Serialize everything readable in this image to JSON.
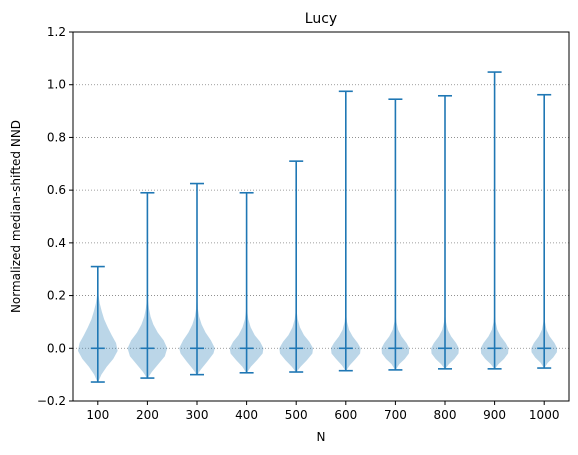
{
  "chart_data": {
    "type": "violin",
    "title": "Lucy",
    "xlabel": "N",
    "ylabel": "Normalized median-shifted NND",
    "categories": [
      "100",
      "200",
      "300",
      "400",
      "500",
      "600",
      "700",
      "800",
      "900",
      "1000"
    ],
    "ylim": [
      -0.2,
      1.2
    ],
    "yticks": [
      "−0.2",
      "0.0",
      "0.2",
      "0.4",
      "0.6",
      "0.8",
      "1.0",
      "1.2"
    ],
    "ytick_values": [
      -0.2,
      0.0,
      0.2,
      0.4,
      0.6,
      0.8,
      1.0,
      1.2
    ],
    "grid": "y-dotted",
    "colors": {
      "line": "#1f77b4",
      "fill": "#1f77b4",
      "grid": "#808080"
    },
    "series": [
      {
        "category": "100",
        "min": -0.128,
        "median": 0.0,
        "max": 0.31,
        "half_width": 0.4,
        "profile": [
          [
            -0.128,
            0.02
          ],
          [
            -0.1,
            0.18
          ],
          [
            -0.07,
            0.45
          ],
          [
            -0.04,
            0.78
          ],
          [
            -0.01,
            1.0
          ],
          [
            0.02,
            0.92
          ],
          [
            0.05,
            0.7
          ],
          [
            0.08,
            0.5
          ],
          [
            0.11,
            0.32
          ],
          [
            0.14,
            0.2
          ],
          [
            0.17,
            0.1
          ],
          [
            0.2,
            0.04
          ],
          [
            0.25,
            0.01
          ],
          [
            0.31,
            0.0
          ]
        ]
      },
      {
        "category": "200",
        "min": -0.113,
        "median": 0.0,
        "max": 0.59,
        "half_width": 0.4,
        "profile": [
          [
            -0.113,
            0.02
          ],
          [
            -0.09,
            0.22
          ],
          [
            -0.06,
            0.55
          ],
          [
            -0.03,
            0.88
          ],
          [
            0.0,
            1.0
          ],
          [
            0.03,
            0.82
          ],
          [
            0.06,
            0.52
          ],
          [
            0.09,
            0.3
          ],
          [
            0.12,
            0.16
          ],
          [
            0.15,
            0.08
          ],
          [
            0.18,
            0.03
          ],
          [
            0.25,
            0.01
          ],
          [
            0.59,
            0.0
          ]
        ]
      },
      {
        "category": "300",
        "min": -0.1,
        "median": 0.0,
        "max": 0.625,
        "half_width": 0.36,
        "profile": [
          [
            -0.1,
            0.02
          ],
          [
            -0.08,
            0.22
          ],
          [
            -0.05,
            0.58
          ],
          [
            -0.02,
            0.92
          ],
          [
            0.0,
            1.0
          ],
          [
            0.03,
            0.78
          ],
          [
            0.06,
            0.48
          ],
          [
            0.09,
            0.26
          ],
          [
            0.12,
            0.12
          ],
          [
            0.15,
            0.05
          ],
          [
            0.2,
            0.01
          ],
          [
            0.625,
            0.0
          ]
        ]
      },
      {
        "category": "400",
        "min": -0.093,
        "median": 0.0,
        "max": 0.59,
        "half_width": 0.34,
        "profile": [
          [
            -0.093,
            0.02
          ],
          [
            -0.07,
            0.25
          ],
          [
            -0.045,
            0.62
          ],
          [
            -0.02,
            0.95
          ],
          [
            0.0,
            1.0
          ],
          [
            0.025,
            0.8
          ],
          [
            0.05,
            0.48
          ],
          [
            0.08,
            0.24
          ],
          [
            0.11,
            0.1
          ],
          [
            0.14,
            0.04
          ],
          [
            0.19,
            0.01
          ],
          [
            0.59,
            0.0
          ]
        ]
      },
      {
        "category": "500",
        "min": -0.09,
        "median": 0.0,
        "max": 0.71,
        "half_width": 0.34,
        "profile": [
          [
            -0.09,
            0.02
          ],
          [
            -0.07,
            0.26
          ],
          [
            -0.045,
            0.64
          ],
          [
            -0.02,
            0.96
          ],
          [
            0.0,
            1.0
          ],
          [
            0.025,
            0.78
          ],
          [
            0.05,
            0.46
          ],
          [
            0.08,
            0.22
          ],
          [
            0.11,
            0.09
          ],
          [
            0.14,
            0.03
          ],
          [
            0.18,
            0.01
          ],
          [
            0.71,
            0.0
          ]
        ]
      },
      {
        "category": "600",
        "min": -0.085,
        "median": 0.0,
        "max": 0.975,
        "half_width": 0.3,
        "profile": [
          [
            -0.085,
            0.02
          ],
          [
            -0.065,
            0.26
          ],
          [
            -0.04,
            0.66
          ],
          [
            -0.02,
            0.96
          ],
          [
            0.0,
            1.0
          ],
          [
            0.02,
            0.8
          ],
          [
            0.045,
            0.46
          ],
          [
            0.07,
            0.22
          ],
          [
            0.1,
            0.08
          ],
          [
            0.13,
            0.03
          ],
          [
            0.17,
            0.01
          ],
          [
            0.975,
            0.0
          ]
        ]
      },
      {
        "category": "700",
        "min": -0.082,
        "median": 0.0,
        "max": 0.945,
        "half_width": 0.28,
        "profile": [
          [
            -0.082,
            0.02
          ],
          [
            -0.06,
            0.28
          ],
          [
            -0.04,
            0.68
          ],
          [
            -0.02,
            0.97
          ],
          [
            0.0,
            1.0
          ],
          [
            0.02,
            0.8
          ],
          [
            0.045,
            0.44
          ],
          [
            0.07,
            0.2
          ],
          [
            0.1,
            0.07
          ],
          [
            0.13,
            0.02
          ],
          [
            0.16,
            0.01
          ],
          [
            0.945,
            0.0
          ]
        ]
      },
      {
        "category": "800",
        "min": -0.078,
        "median": 0.0,
        "max": 0.958,
        "half_width": 0.28,
        "profile": [
          [
            -0.078,
            0.02
          ],
          [
            -0.06,
            0.28
          ],
          [
            -0.04,
            0.68
          ],
          [
            -0.02,
            0.97
          ],
          [
            0.0,
            1.0
          ],
          [
            0.02,
            0.8
          ],
          [
            0.045,
            0.44
          ],
          [
            0.07,
            0.2
          ],
          [
            0.1,
            0.07
          ],
          [
            0.13,
            0.02
          ],
          [
            0.16,
            0.01
          ],
          [
            0.958,
            0.0
          ]
        ]
      },
      {
        "category": "900",
        "min": -0.078,
        "median": 0.0,
        "max": 1.048,
        "half_width": 0.28,
        "profile": [
          [
            -0.078,
            0.02
          ],
          [
            -0.06,
            0.28
          ],
          [
            -0.04,
            0.68
          ],
          [
            -0.02,
            0.97
          ],
          [
            0.0,
            1.0
          ],
          [
            0.02,
            0.8
          ],
          [
            0.045,
            0.44
          ],
          [
            0.07,
            0.2
          ],
          [
            0.1,
            0.07
          ],
          [
            0.13,
            0.02
          ],
          [
            0.16,
            0.01
          ],
          [
            1.048,
            0.0
          ]
        ]
      },
      {
        "category": "1000",
        "min": -0.075,
        "median": 0.0,
        "max": 0.962,
        "half_width": 0.26,
        "profile": [
          [
            -0.075,
            0.02
          ],
          [
            -0.055,
            0.28
          ],
          [
            -0.035,
            0.7
          ],
          [
            -0.015,
            0.98
          ],
          [
            0.0,
            1.0
          ],
          [
            0.02,
            0.8
          ],
          [
            0.045,
            0.42
          ],
          [
            0.07,
            0.18
          ],
          [
            0.1,
            0.06
          ],
          [
            0.13,
            0.02
          ],
          [
            0.16,
            0.01
          ],
          [
            0.962,
            0.0
          ]
        ]
      }
    ]
  }
}
